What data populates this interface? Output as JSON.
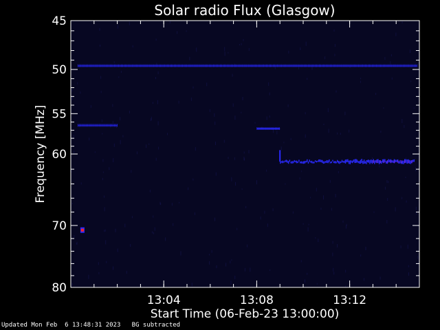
{
  "chart_data": {
    "type": "heatmap",
    "title": "Solar radio Flux (Glasgow)",
    "xlabel": "Start Time (06-Feb-23 13:00:00)",
    "ylabel": "Frequency [MHz]",
    "xlim_minutes_after_13_00": [
      0,
      15
    ],
    "ylim_mhz": [
      45,
      80
    ],
    "y_scale": "log",
    "x_ticks": [
      {
        "minutes": 4,
        "label": "13:04"
      },
      {
        "minutes": 8,
        "label": "13:08"
      },
      {
        "minutes": 12,
        "label": "13:12"
      }
    ],
    "y_ticks": [
      {
        "value": 45,
        "label": "45"
      },
      {
        "value": 50,
        "label": "50"
      },
      {
        "value": 55,
        "label": "55"
      },
      {
        "value": 60,
        "label": "60"
      },
      {
        "value": 70,
        "label": "70"
      },
      {
        "value": 80,
        "label": "80"
      }
    ],
    "background_color": "#070722",
    "signal_color": "#2a2aff",
    "hot_color": "#ff2020",
    "features": [
      {
        "kind": "constant-line",
        "freq_mhz": 49.6,
        "t_start": 0.3,
        "t_end": 14.9
      },
      {
        "kind": "constant-line",
        "freq_mhz": 56.4,
        "t_start": 0.3,
        "t_end": 2.0
      },
      {
        "kind": "segment",
        "freq_mhz": 56.8,
        "t_start": 8.0,
        "t_end": 9.0
      },
      {
        "kind": "band",
        "freq_mhz": 61.0,
        "t_start": 9.0,
        "t_end": 14.8
      },
      {
        "kind": "hot-spot",
        "freq_mhz": 70.7,
        "t": 0.5
      }
    ]
  },
  "footer": {
    "updated": "Updated Mon Feb  6 13:48:31 2023",
    "note": "BG subtracted"
  }
}
